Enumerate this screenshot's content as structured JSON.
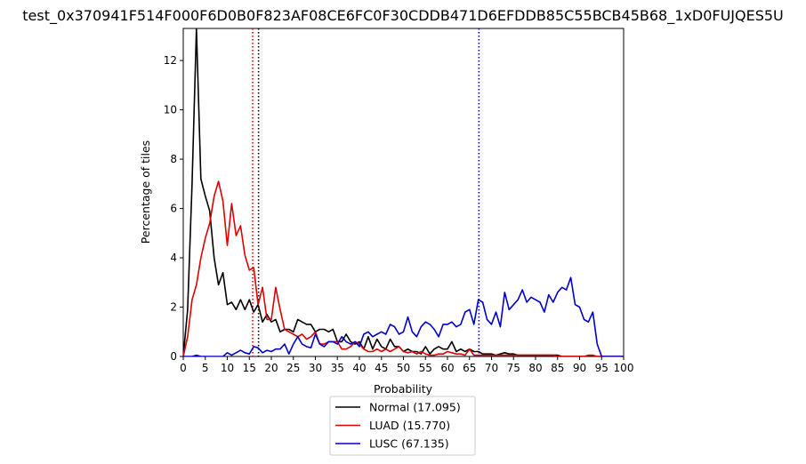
{
  "chart_data": {
    "type": "line",
    "title": "test_0x370941F514F000F6D0B0F823AF08CE6FC0F30CDDB471D6EFDDB85C55BCB45B68_1xD0FUJQES5U",
    "xlabel": "Probability",
    "ylabel": "Percentage of tiles",
    "xlim": [
      0,
      100
    ],
    "ylim": [
      0,
      13.3
    ],
    "xticks": [
      0,
      5,
      10,
      15,
      20,
      25,
      30,
      35,
      40,
      45,
      50,
      55,
      60,
      65,
      70,
      75,
      80,
      85,
      90,
      95,
      100
    ],
    "yticks": [
      0,
      2,
      4,
      6,
      8,
      10,
      12
    ],
    "legend_position": "bottom-center",
    "series": [
      {
        "name": "Normal (17.095)",
        "color": "#000000",
        "x": [
          0,
          1,
          2,
          3,
          4,
          5,
          6,
          7,
          8,
          9,
          10,
          11,
          12,
          13,
          14,
          15,
          16,
          17,
          18,
          19,
          20,
          21,
          22,
          23,
          24,
          25,
          26,
          27,
          28,
          29,
          30,
          31,
          32,
          33,
          34,
          35,
          36,
          37,
          38,
          39,
          40,
          41,
          42,
          43,
          44,
          45,
          46,
          47,
          48,
          49,
          50,
          51,
          52,
          53,
          54,
          55,
          56,
          57,
          58,
          59,
          60,
          61,
          62,
          63,
          64,
          65,
          66,
          67,
          68,
          69,
          70,
          71,
          72,
          73,
          74,
          75,
          76,
          77,
          78,
          79,
          80,
          81,
          82,
          83,
          84,
          85,
          86,
          87,
          88,
          89,
          90,
          91,
          92,
          93,
          94,
          95,
          96,
          97,
          98,
          99,
          100
        ],
        "values": [
          0,
          1.9,
          7.0,
          13.3,
          7.2,
          6.5,
          5.9,
          4.0,
          2.9,
          3.4,
          2.1,
          2.2,
          1.9,
          2.3,
          1.9,
          2.3,
          1.8,
          2.1,
          1.4,
          1.7,
          1.4,
          1.5,
          1.0,
          1.1,
          1.1,
          1.0,
          1.5,
          1.4,
          1.3,
          1.3,
          1.0,
          1.1,
          1.1,
          1.0,
          1.1,
          0.6,
          0.6,
          0.9,
          0.6,
          0.5,
          0.6,
          0.3,
          0.8,
          0.3,
          0.7,
          0.4,
          0.3,
          0.7,
          0.4,
          0.4,
          0.2,
          0.3,
          0.2,
          0.2,
          0.1,
          0.4,
          0.1,
          0.3,
          0.4,
          0.3,
          0.3,
          0.6,
          0.2,
          0.3,
          0.2,
          0.3,
          0.2,
          0.2,
          0.1,
          0.1,
          0.1,
          0.05,
          0.1,
          0.15,
          0.1,
          0.1,
          0.05,
          0.05,
          0.05,
          0.05,
          0.05,
          0.05,
          0.05,
          0.05,
          0.05,
          0.05,
          0,
          0,
          0,
          0,
          0,
          0,
          0,
          0,
          0,
          0,
          0,
          0,
          0,
          0,
          0
        ]
      },
      {
        "name": "LUAD (15.770)",
        "color": "#e00000",
        "x": [
          0,
          1,
          2,
          3,
          4,
          5,
          6,
          7,
          8,
          9,
          10,
          11,
          12,
          13,
          14,
          15,
          16,
          17,
          18,
          19,
          20,
          21,
          22,
          23,
          24,
          25,
          26,
          27,
          28,
          29,
          30,
          31,
          32,
          33,
          34,
          35,
          36,
          37,
          38,
          39,
          40,
          41,
          42,
          43,
          44,
          45,
          46,
          47,
          48,
          49,
          50,
          51,
          52,
          53,
          54,
          55,
          56,
          57,
          58,
          59,
          60,
          61,
          62,
          63,
          64,
          65,
          66,
          67,
          68,
          69,
          70,
          71,
          72,
          73,
          74,
          75,
          76,
          77,
          78,
          79,
          80,
          81,
          82,
          83,
          84,
          85,
          86,
          87,
          88,
          89,
          90,
          91,
          92,
          93,
          94,
          95,
          96,
          97,
          98,
          99,
          100
        ],
        "values": [
          0,
          0.8,
          2.3,
          2.9,
          4.0,
          4.8,
          5.4,
          6.5,
          7.1,
          6.3,
          4.5,
          6.2,
          4.9,
          5.3,
          4.1,
          3.5,
          3.6,
          2.1,
          2.8,
          1.5,
          1.5,
          2.8,
          1.9,
          1.1,
          1.0,
          0.9,
          0.8,
          0.9,
          0.7,
          0.8,
          1.0,
          0.5,
          0.5,
          0.6,
          0.6,
          0.6,
          0.3,
          0.3,
          0.4,
          0.6,
          0.5,
          0.3,
          0.2,
          0.2,
          0.3,
          0.2,
          0.3,
          0.2,
          0.3,
          0.4,
          0.2,
          0.15,
          0.2,
          0.1,
          0.2,
          0.1,
          0.05,
          0.05,
          0.1,
          0.1,
          0.2,
          0.15,
          0.1,
          0.1,
          0.05,
          0.3,
          0.05,
          0.05,
          0.05,
          0.05,
          0.05,
          0.05,
          0.05,
          0.05,
          0.05,
          0.05,
          0.05,
          0.05,
          0.05,
          0.05,
          0.05,
          0.05,
          0.05,
          0.05,
          0.05,
          0,
          0,
          0,
          0,
          0,
          0,
          0,
          0.05,
          0.05,
          0,
          0,
          0,
          0,
          0,
          0,
          0
        ]
      },
      {
        "name": "LUSC (67.135)",
        "color": "#0000cc",
        "x": [
          0,
          1,
          2,
          3,
          4,
          5,
          6,
          7,
          8,
          9,
          10,
          11,
          12,
          13,
          14,
          15,
          16,
          17,
          18,
          19,
          20,
          21,
          22,
          23,
          24,
          25,
          26,
          27,
          28,
          29,
          30,
          31,
          32,
          33,
          34,
          35,
          36,
          37,
          38,
          39,
          40,
          41,
          42,
          43,
          44,
          45,
          46,
          47,
          48,
          49,
          50,
          51,
          52,
          53,
          54,
          55,
          56,
          57,
          58,
          59,
          60,
          61,
          62,
          63,
          64,
          65,
          66,
          67,
          68,
          69,
          70,
          71,
          72,
          73,
          74,
          75,
          76,
          77,
          78,
          79,
          80,
          81,
          82,
          83,
          84,
          85,
          86,
          87,
          88,
          89,
          90,
          91,
          92,
          93,
          94,
          95,
          96,
          97,
          98,
          99,
          100
        ],
        "values": [
          0,
          0,
          0,
          0.05,
          0,
          0,
          0,
          0,
          0,
          0,
          0.15,
          0.05,
          0.15,
          0.25,
          0.15,
          0.1,
          0.4,
          0.35,
          0.15,
          0.25,
          0.2,
          0.3,
          0.3,
          0.5,
          0.1,
          0.5,
          0.8,
          0.5,
          0.4,
          0.35,
          0.9,
          0.5,
          0.4,
          0.6,
          0.6,
          0.5,
          0.8,
          0.6,
          0.5,
          0.6,
          0.4,
          0.9,
          1.0,
          0.8,
          0.9,
          1.0,
          0.9,
          1.3,
          1.2,
          0.9,
          1.0,
          1.6,
          1.0,
          0.8,
          1.2,
          1.4,
          1.3,
          1.1,
          0.8,
          1.3,
          1.3,
          1.4,
          1.2,
          1.3,
          1.8,
          1.9,
          1.3,
          2.3,
          2.2,
          1.5,
          1.3,
          1.8,
          1.2,
          2.6,
          1.9,
          2.1,
          2.3,
          2.7,
          2.2,
          2.4,
          2.3,
          2.2,
          1.8,
          2.5,
          2.2,
          2.6,
          2.8,
          2.7,
          3.2,
          2.1,
          2.0,
          1.5,
          1.4,
          1.8,
          0.5,
          0,
          0,
          0,
          0,
          0,
          0
        ]
      }
    ],
    "vlines": [
      {
        "x": 17.095,
        "color": "#000000",
        "style": "dotted"
      },
      {
        "x": 15.77,
        "color": "#e00000",
        "style": "dotted"
      },
      {
        "x": 67.135,
        "color": "#0000cc",
        "style": "dotted"
      }
    ]
  }
}
